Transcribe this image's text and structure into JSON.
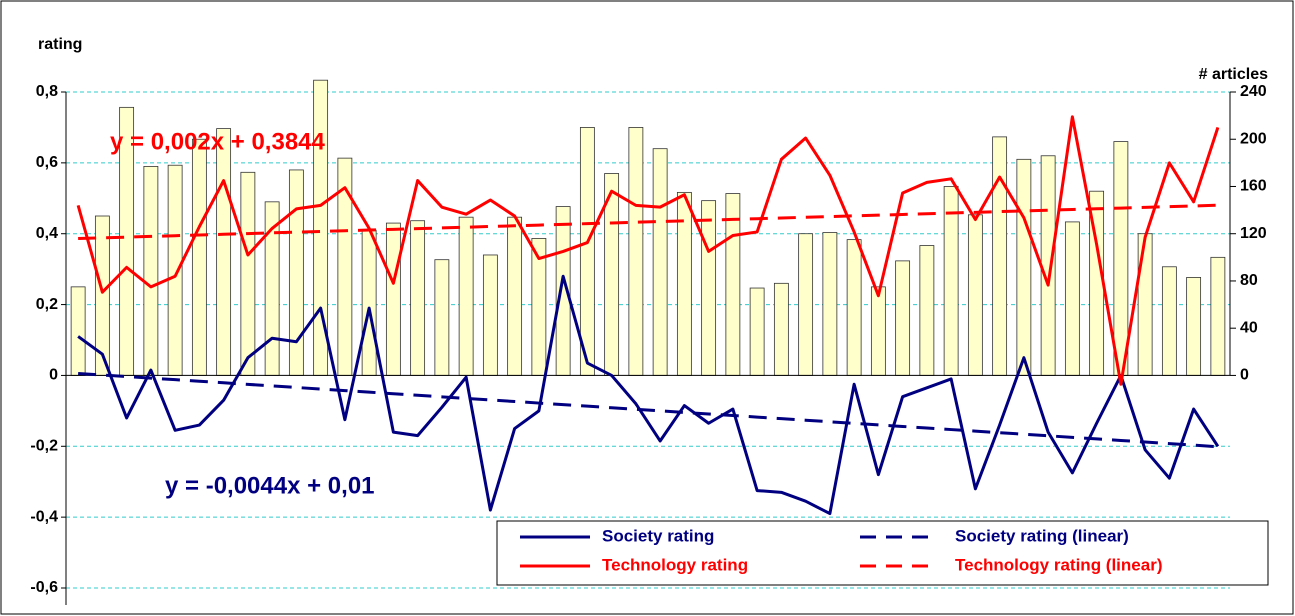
{
  "chart_data": {
    "type": "combo",
    "y_label": "rating",
    "y2_label": "# articles",
    "ylim": [
      -0.6,
      0.8
    ],
    "yticks": [
      {
        "value": -0.6,
        "label": "-0,6"
      },
      {
        "value": -0.4,
        "label": "-0,4"
      },
      {
        "value": -0.2,
        "label": "-0,2"
      },
      0,
      {
        "value": 0.2,
        "label": "0,2"
      },
      {
        "value": 0.4,
        "label": "0,4"
      },
      {
        "value": 0.6,
        "label": "0,6"
      },
      {
        "value": 0.8,
        "label": "0,8"
      }
    ],
    "y2lim": [
      0,
      240
    ],
    "y2ticks": [
      0,
      40,
      80,
      120,
      160,
      200,
      240
    ],
    "grid": true,
    "grid_color": "#33cccc",
    "annotations": [
      {
        "text": "y = 0,002x + 0,3844",
        "color": "#ff0000"
      },
      {
        "text": "y = -0,0044x + 0,01",
        "color": "#000080"
      }
    ],
    "series": [
      {
        "type": "bar",
        "axis": "y2",
        "color": "#ffffcc",
        "values": [
          75,
          135,
          227,
          177,
          178,
          200,
          209,
          172,
          147,
          174,
          250,
          184,
          123,
          129,
          131,
          98,
          134,
          102,
          134,
          116,
          143,
          210,
          171,
          210,
          192,
          155,
          148,
          154,
          74,
          78,
          120,
          121,
          115,
          75,
          97,
          110,
          160,
          136,
          202,
          183,
          186,
          130,
          156,
          198,
          120,
          92,
          83,
          100
        ]
      },
      {
        "type": "line",
        "name": "Society rating",
        "color": "#000080",
        "dashed": false,
        "values": [
          0.11,
          0.06,
          -0.12,
          0.015,
          -0.155,
          -0.14,
          -0.07,
          0.05,
          0.105,
          0.095,
          0.19,
          -0.125,
          0.19,
          -0.16,
          -0.17,
          -0.09,
          -0.005,
          -0.38,
          -0.15,
          -0.1,
          0.28,
          0.035,
          0,
          -0.08,
          -0.185,
          -0.085,
          -0.135,
          -0.095,
          -0.325,
          -0.33,
          -0.355,
          -0.39,
          -0.025,
          -0.28,
          -0.06,
          -0.035,
          -0.01,
          -0.32,
          -0.14,
          0.05,
          -0.16,
          -0.275,
          -0.135,
          0,
          -0.21,
          -0.29,
          -0.095,
          -0.2
        ]
      },
      {
        "type": "line",
        "name": "Society rating (linear)",
        "color": "#000080",
        "dashed": true,
        "values": [
          0.0056,
          0.0012,
          -0.0032,
          -0.0076,
          -0.012,
          -0.0164,
          -0.0208,
          -0.0252,
          -0.0296,
          -0.034,
          -0.0384,
          -0.0428,
          -0.0472,
          -0.0516,
          -0.056,
          -0.0604,
          -0.0648,
          -0.0692,
          -0.0736,
          -0.078,
          -0.0824,
          -0.0868,
          -0.0912,
          -0.0956,
          -0.1,
          -0.1044,
          -0.1088,
          -0.1132,
          -0.1176,
          -0.122,
          -0.1264,
          -0.1308,
          -0.1352,
          -0.1396,
          -0.144,
          -0.1484,
          -0.1528,
          -0.1572,
          -0.1616,
          -0.166,
          -0.1704,
          -0.1748,
          -0.1792,
          -0.1836,
          -0.188,
          -0.1924,
          -0.1968,
          -0.2012
        ]
      },
      {
        "type": "line",
        "name": "Technology rating",
        "color": "#ff0000",
        "dashed": false,
        "values": [
          0.48,
          0.235,
          0.305,
          0.25,
          0.28,
          0.42,
          0.55,
          0.34,
          0.415,
          0.47,
          0.48,
          0.53,
          0.415,
          0.26,
          0.55,
          0.475,
          0.455,
          0.495,
          0.45,
          0.33,
          0.35,
          0.375,
          0.52,
          0.48,
          0.475,
          0.51,
          0.35,
          0.395,
          0.405,
          0.61,
          0.67,
          0.565,
          0.405,
          0.225,
          0.515,
          0.545,
          0.555,
          0.44,
          0.56,
          0.445,
          0.255,
          0.73,
          0.37,
          -0.025,
          0.39,
          0.6,
          0.49,
          0.7
        ]
      },
      {
        "type": "line",
        "name": "Technology rating (linear)",
        "color": "#ff0000",
        "dashed": true,
        "values": [
          0.3864,
          0.3884,
          0.3904,
          0.3924,
          0.3944,
          0.3964,
          0.3984,
          0.4004,
          0.4024,
          0.4044,
          0.4064,
          0.4084,
          0.4104,
          0.4124,
          0.4144,
          0.4164,
          0.4184,
          0.4204,
          0.4224,
          0.4244,
          0.4264,
          0.4284,
          0.4304,
          0.4324,
          0.4344,
          0.4364,
          0.4384,
          0.4404,
          0.4424,
          0.4444,
          0.4464,
          0.4484,
          0.4504,
          0.4524,
          0.4544,
          0.4564,
          0.4584,
          0.4604,
          0.4624,
          0.4644,
          0.4664,
          0.4684,
          0.4704,
          0.4724,
          0.4744,
          0.4764,
          0.4784,
          0.4804
        ]
      }
    ]
  }
}
